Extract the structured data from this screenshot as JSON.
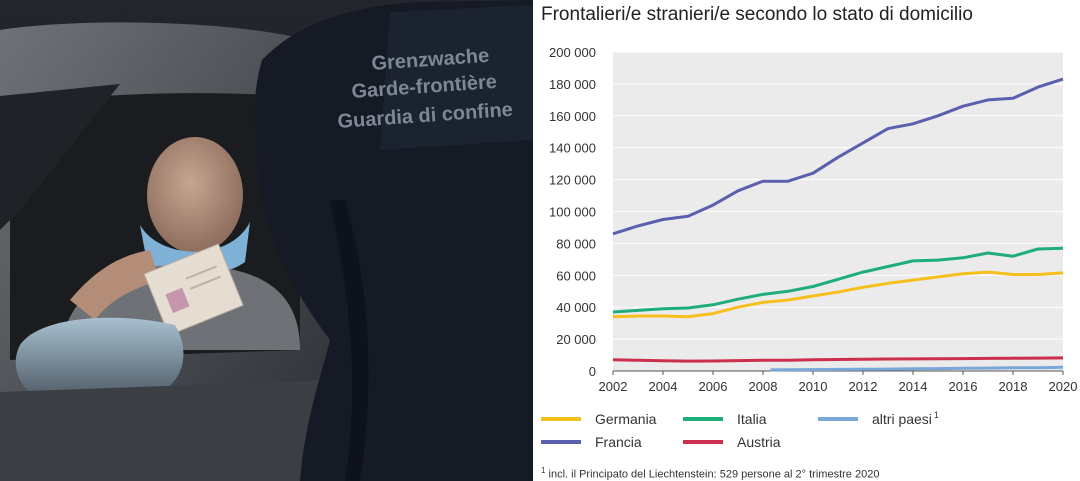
{
  "photo": {
    "patch_lines": [
      "Grenzwache",
      "Garde-frontière",
      "Guardia di confine"
    ]
  },
  "chart_data": {
    "type": "line",
    "title": "Frontalieri/e stranieri/e secondo lo stato di domicilio",
    "xlabel": "",
    "ylabel": "",
    "xlim": [
      2002,
      2020
    ],
    "ylim": [
      0,
      200000
    ],
    "x_ticks": [
      "2002",
      "2004",
      "2006",
      "2008",
      "2010",
      "2012",
      "2014",
      "2016",
      "2018",
      "2020"
    ],
    "y_ticks": [
      "0",
      "20 000",
      "40 000",
      "60 000",
      "80 000",
      "100 000",
      "120 000",
      "140 000",
      "160 000",
      "180 000",
      "200 000"
    ],
    "grid": true,
    "legend_position": "bottom",
    "series": [
      {
        "name": "Germania",
        "color": "#f5bf1c",
        "x": [
          2002,
          2003,
          2004,
          2005,
          2006,
          2007,
          2008,
          2009,
          2010,
          2011,
          2012,
          2013,
          2014,
          2015,
          2016,
          2017,
          2018,
          2019,
          2020
        ],
        "values": [
          34000,
          34500,
          34500,
          34000,
          36000,
          40000,
          43000,
          44500,
          47000,
          49500,
          52500,
          55000,
          57000,
          59000,
          61000,
          62000,
          60500,
          60500,
          61500
        ]
      },
      {
        "name": "Francia",
        "color": "#5a5fae",
        "x": [
          2002,
          2003,
          2004,
          2005,
          2006,
          2007,
          2008,
          2009,
          2010,
          2011,
          2012,
          2013,
          2014,
          2015,
          2016,
          2017,
          2018,
          2019,
          2020
        ],
        "values": [
          86000,
          91000,
          95000,
          97000,
          104000,
          113000,
          119000,
          119000,
          124000,
          134000,
          143000,
          152000,
          155000,
          160000,
          166000,
          170000,
          171000,
          178000,
          183000
        ]
      },
      {
        "name": "Italia",
        "color": "#1fad7a",
        "x": [
          2002,
          2003,
          2004,
          2005,
          2006,
          2007,
          2008,
          2009,
          2010,
          2011,
          2012,
          2013,
          2014,
          2015,
          2016,
          2017,
          2018,
          2019,
          2020
        ],
        "values": [
          37000,
          38000,
          39000,
          39500,
          41500,
          45000,
          48000,
          50000,
          53000,
          57500,
          62000,
          65500,
          69000,
          69500,
          71000,
          74000,
          72000,
          76500,
          77000
        ]
      },
      {
        "name": "Austria",
        "color": "#cc2f4e",
        "x": [
          2002,
          2003,
          2004,
          2005,
          2006,
          2007,
          2008,
          2009,
          2010,
          2011,
          2012,
          2013,
          2014,
          2015,
          2016,
          2017,
          2018,
          2019,
          2020
        ],
        "values": [
          7000,
          6700,
          6400,
          6200,
          6300,
          6500,
          6700,
          6800,
          7000,
          7200,
          7400,
          7500,
          7600,
          7700,
          7800,
          7900,
          8000,
          8100,
          8200
        ]
      },
      {
        "name": "altri paesi",
        "legend_sup": "1",
        "color": "#7aa6d8",
        "x": [
          2008.3,
          2009,
          2010,
          2011,
          2012,
          2013,
          2014,
          2015,
          2016,
          2017,
          2018,
          2019,
          2020
        ],
        "values": [
          700,
          800,
          900,
          1000,
          1100,
          1200,
          1400,
          1500,
          1700,
          1800,
          2000,
          2100,
          2300
        ]
      }
    ],
    "footnote": {
      "marker": "1",
      "text": "incl. il Principato del Liechtenstein: 529 persone al 2° trimestre 2020"
    }
  }
}
